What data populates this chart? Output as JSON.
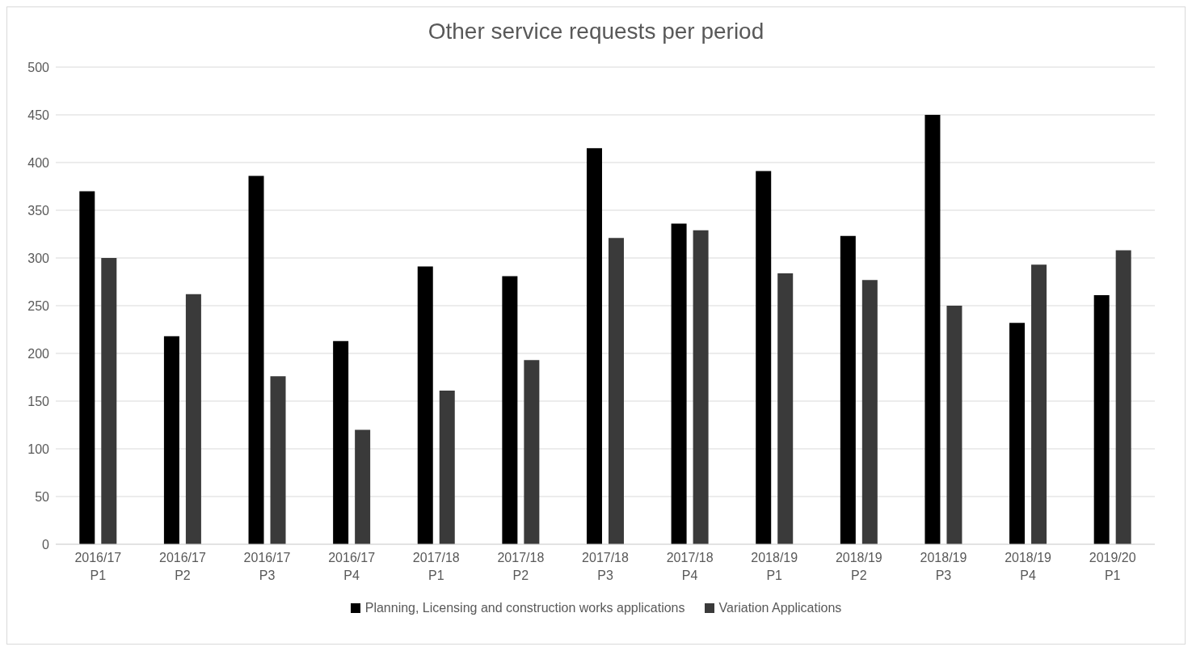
{
  "chart_data": {
    "type": "bar",
    "title": "Other service requests per period",
    "categories": [
      "2016/17 P1",
      "2016/17 P2",
      "2016/17 P3",
      "2016/17 P4",
      "2017/18 P1",
      "2017/18 P2",
      "2017/18 P3",
      "2017/18 P4",
      "2018/19 P1",
      "2018/19 P2",
      "2018/19 P3",
      "2018/19 P4",
      "2019/20 P1"
    ],
    "series": [
      {
        "name": "Planning, Licensing and construction works applications",
        "color": "#000000",
        "values": [
          370,
          218,
          386,
          213,
          291,
          281,
          415,
          336,
          391,
          323,
          450,
          232,
          261
        ]
      },
      {
        "name": "Variation Applications",
        "color": "#3a3a3a",
        "values": [
          300,
          262,
          176,
          120,
          161,
          193,
          321,
          329,
          284,
          277,
          250,
          293,
          308
        ]
      }
    ],
    "ylim": [
      0,
      500
    ],
    "yticks": [
      0,
      50,
      100,
      150,
      200,
      250,
      300,
      350,
      400,
      450,
      500
    ],
    "grid": "y",
    "legend": "bottom"
  }
}
